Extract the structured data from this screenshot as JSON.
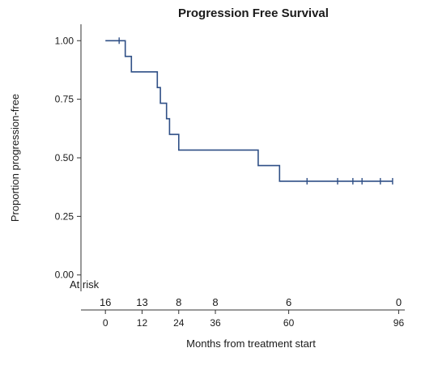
{
  "chart_data": {
    "type": "line",
    "title": "Progression Free Survival",
    "xlabel": "Months from treatment start",
    "ylabel": "Proportion progression-free",
    "xlim": [
      -8,
      98
    ],
    "ylim": [
      -0.07,
      1.07
    ],
    "xticks": [
      0,
      12,
      24,
      36,
      60,
      96
    ],
    "xtick_labels": [
      "0",
      "12",
      "24",
      "36",
      "60",
      "96"
    ],
    "yticks": [
      0,
      0.25,
      0.5,
      0.75,
      1
    ],
    "ytick_labels": [
      "0.00",
      "0.25",
      "0.50",
      "0.75",
      "1.00"
    ],
    "grid": false,
    "line_color": "#2f4f86",
    "series": [
      {
        "steps": [
          [
            0,
            1.0
          ],
          [
            6.5,
            1.0
          ],
          [
            6.5,
            0.933
          ],
          [
            8.5,
            0.933
          ],
          [
            8.5,
            0.867
          ],
          [
            17,
            0.867
          ],
          [
            17,
            0.8
          ],
          [
            18,
            0.8
          ],
          [
            18,
            0.733
          ],
          [
            20,
            0.733
          ],
          [
            20,
            0.667
          ],
          [
            21,
            0.667
          ],
          [
            21,
            0.6
          ],
          [
            24,
            0.6
          ],
          [
            24,
            0.533
          ],
          [
            50,
            0.533
          ],
          [
            50,
            0.467
          ],
          [
            57,
            0.467
          ],
          [
            57,
            0.4
          ],
          [
            94,
            0.4
          ]
        ],
        "censored": [
          [
            4.5,
            1.0
          ],
          [
            66,
            0.4
          ],
          [
            76,
            0.4
          ],
          [
            81,
            0.4
          ],
          [
            84,
            0.4
          ],
          [
            90,
            0.4
          ],
          [
            94,
            0.4
          ]
        ]
      }
    ],
    "at_risk": {
      "label": "At risk",
      "times": [
        0,
        12,
        24,
        36,
        60,
        96
      ],
      "counts": [
        "16",
        "13",
        "8",
        "8",
        "6",
        "0"
      ]
    }
  }
}
